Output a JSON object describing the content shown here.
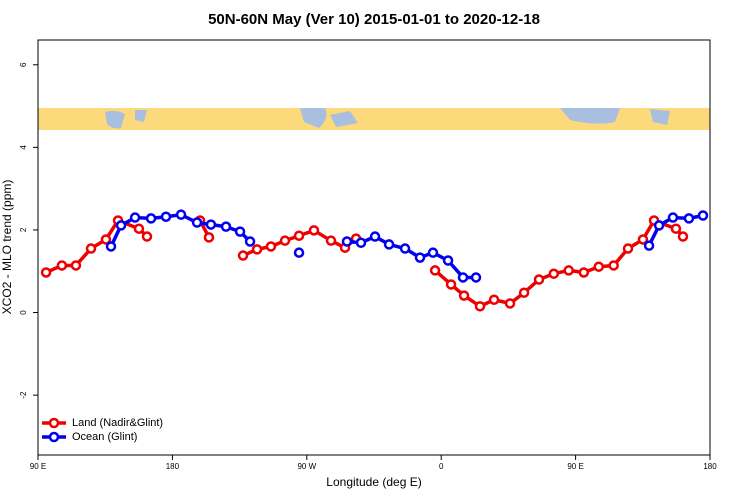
{
  "chart_data": {
    "type": "line",
    "title": "50N-60N May (Ver 10)   2015-01-01 to 2020-12-18",
    "xlabel": "Longitude (deg E)",
    "ylabel": "XCO2 - MLO trend (ppm)",
    "xlim": [
      90,
      540
    ],
    "xticks": [
      {
        "value": 90,
        "label": "90 E"
      },
      {
        "value": 180,
        "label": "180"
      },
      {
        "value": 270,
        "label": "90 W"
      },
      {
        "value": 360,
        "label": "0"
      },
      {
        "value": 450,
        "label": "90 E"
      },
      {
        "value": 540,
        "label": "180"
      }
    ],
    "ylim": [
      -3.45,
      6.6
    ],
    "yticks": [
      -2,
      0,
      2,
      4,
      6
    ],
    "legend": "bottom-left",
    "series": [
      {
        "name": "Land (Nadir&Glint)",
        "color": "#ee0000",
        "x": [
          95.4,
          106,
          115.4,
          125.5,
          135.5,
          143.6,
          157.6,
          163,
          null,
          198.5,
          204.5,
          null,
          227.3,
          236.7,
          246,
          255.4,
          264.8,
          274.8,
          286.2,
          295.6,
          303,
          null,
          355.9,
          366.6,
          375.3,
          386,
          395.4,
          406.1,
          415.5,
          425.5,
          435.4,
          445.4,
          455.5,
          465.5,
          475.5,
          485.1,
          495.1,
          502.5,
          517.2,
          521.9
        ],
        "values": [
          0.97,
          1.14,
          1.14,
          1.55,
          1.77,
          2.23,
          2.03,
          1.84,
          null,
          2.23,
          1.82,
          null,
          1.38,
          1.53,
          1.6,
          1.74,
          1.86,
          1.99,
          1.74,
          1.57,
          1.79,
          null,
          1.02,
          0.68,
          0.41,
          0.15,
          0.31,
          0.22,
          0.48,
          0.8,
          0.94,
          1.02,
          0.97,
          1.11,
          1.14,
          1.55,
          1.77,
          2.23,
          2.03,
          1.84
        ]
      },
      {
        "name": "Ocean (Glint)",
        "color": "#0000ee",
        "x": [
          138.9,
          145.6,
          155,
          165.7,
          175.7,
          185.8,
          196.5,
          205.8,
          215.9,
          225.3,
          232,
          null,
          264.8,
          null,
          296.9,
          306.3,
          315.7,
          325.1,
          335.8,
          345.8,
          354.5,
          364.6,
          374.6,
          383.3,
          null,
          499.2,
          505.9,
          515.2,
          525.9,
          535.3
        ],
        "values": [
          1.6,
          2.11,
          2.3,
          2.28,
          2.32,
          2.37,
          2.18,
          2.13,
          2.08,
          1.96,
          1.72,
          null,
          1.45,
          null,
          1.72,
          1.69,
          1.84,
          1.65,
          1.55,
          1.33,
          1.45,
          1.26,
          0.85,
          0.85,
          null,
          1.62,
          2.11,
          2.3,
          2.28,
          2.35
        ]
      }
    ]
  }
}
